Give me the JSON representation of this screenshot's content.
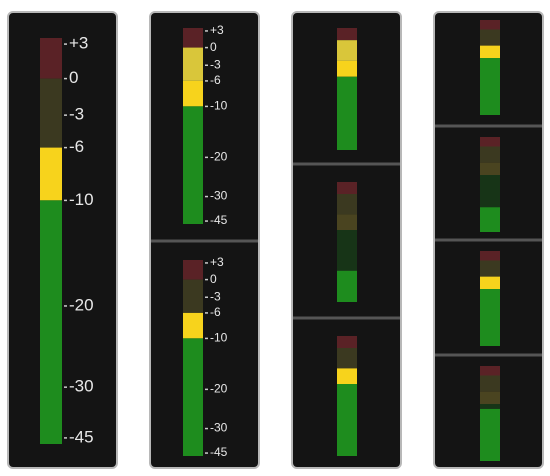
{
  "scale": [
    {
      "value": 3,
      "label": "+3"
    },
    0,
    -3,
    -6,
    -10,
    -20,
    -30,
    -45
  ],
  "panels": [
    {
      "meters": [
        {
          "level": -6
        }
      ]
    },
    {
      "meters": [
        {
          "level": 0
        },
        {
          "level": -6
        }
      ]
    },
    {
      "meters": [
        {
          "level": 0
        },
        {
          "level": -24
        },
        {
          "level": -6
        }
      ]
    },
    {
      "meters": [
        {
          "level": -6
        },
        {
          "level": -24
        },
        {
          "level": -6
        },
        {
          "level": -12
        }
      ]
    }
  ]
}
